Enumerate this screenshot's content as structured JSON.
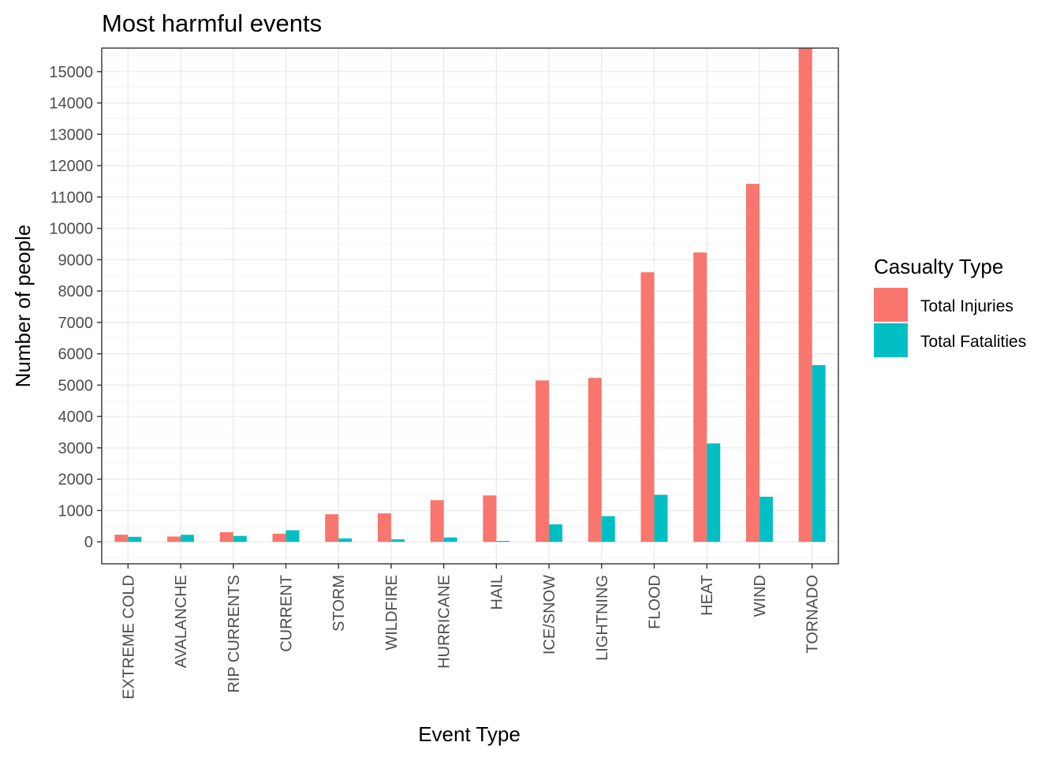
{
  "chart_data": {
    "type": "bar",
    "title": "Most harmful events",
    "xlabel": "Event Type",
    "ylabel": "Number of people",
    "categories": [
      "EXTREME COLD",
      "AVALANCHE",
      "RIP CURRENTS",
      "CURRENT",
      "STORM",
      "WILDFIRE",
      "HURRICANE",
      "HAIL",
      "ICE/SNOW",
      "LIGHTNING",
      "FLOOD",
      "HEAT",
      "WIND",
      "TORNADO"
    ],
    "series": [
      {
        "name": "Total Injuries",
        "color": "#F8766D",
        "values": [
          230,
          170,
          310,
          260,
          880,
          910,
          1330,
          1480,
          5150,
          5230,
          8600,
          9230,
          11420,
          15750
        ]
      },
      {
        "name": "Total Fatalities",
        "color": "#00BFC4",
        "values": [
          160,
          225,
          190,
          370,
          110,
          80,
          140,
          30,
          560,
          820,
          1500,
          3140,
          1440,
          5640
        ]
      }
    ],
    "ylim": [
      -700,
      15750
    ],
    "yticks": [
      0,
      1000,
      2000,
      3000,
      4000,
      5000,
      6000,
      7000,
      8000,
      9000,
      10000,
      11000,
      12000,
      13000,
      14000,
      15000
    ],
    "grid": true,
    "legend": {
      "title": "Casualty Type",
      "position": "right"
    }
  }
}
